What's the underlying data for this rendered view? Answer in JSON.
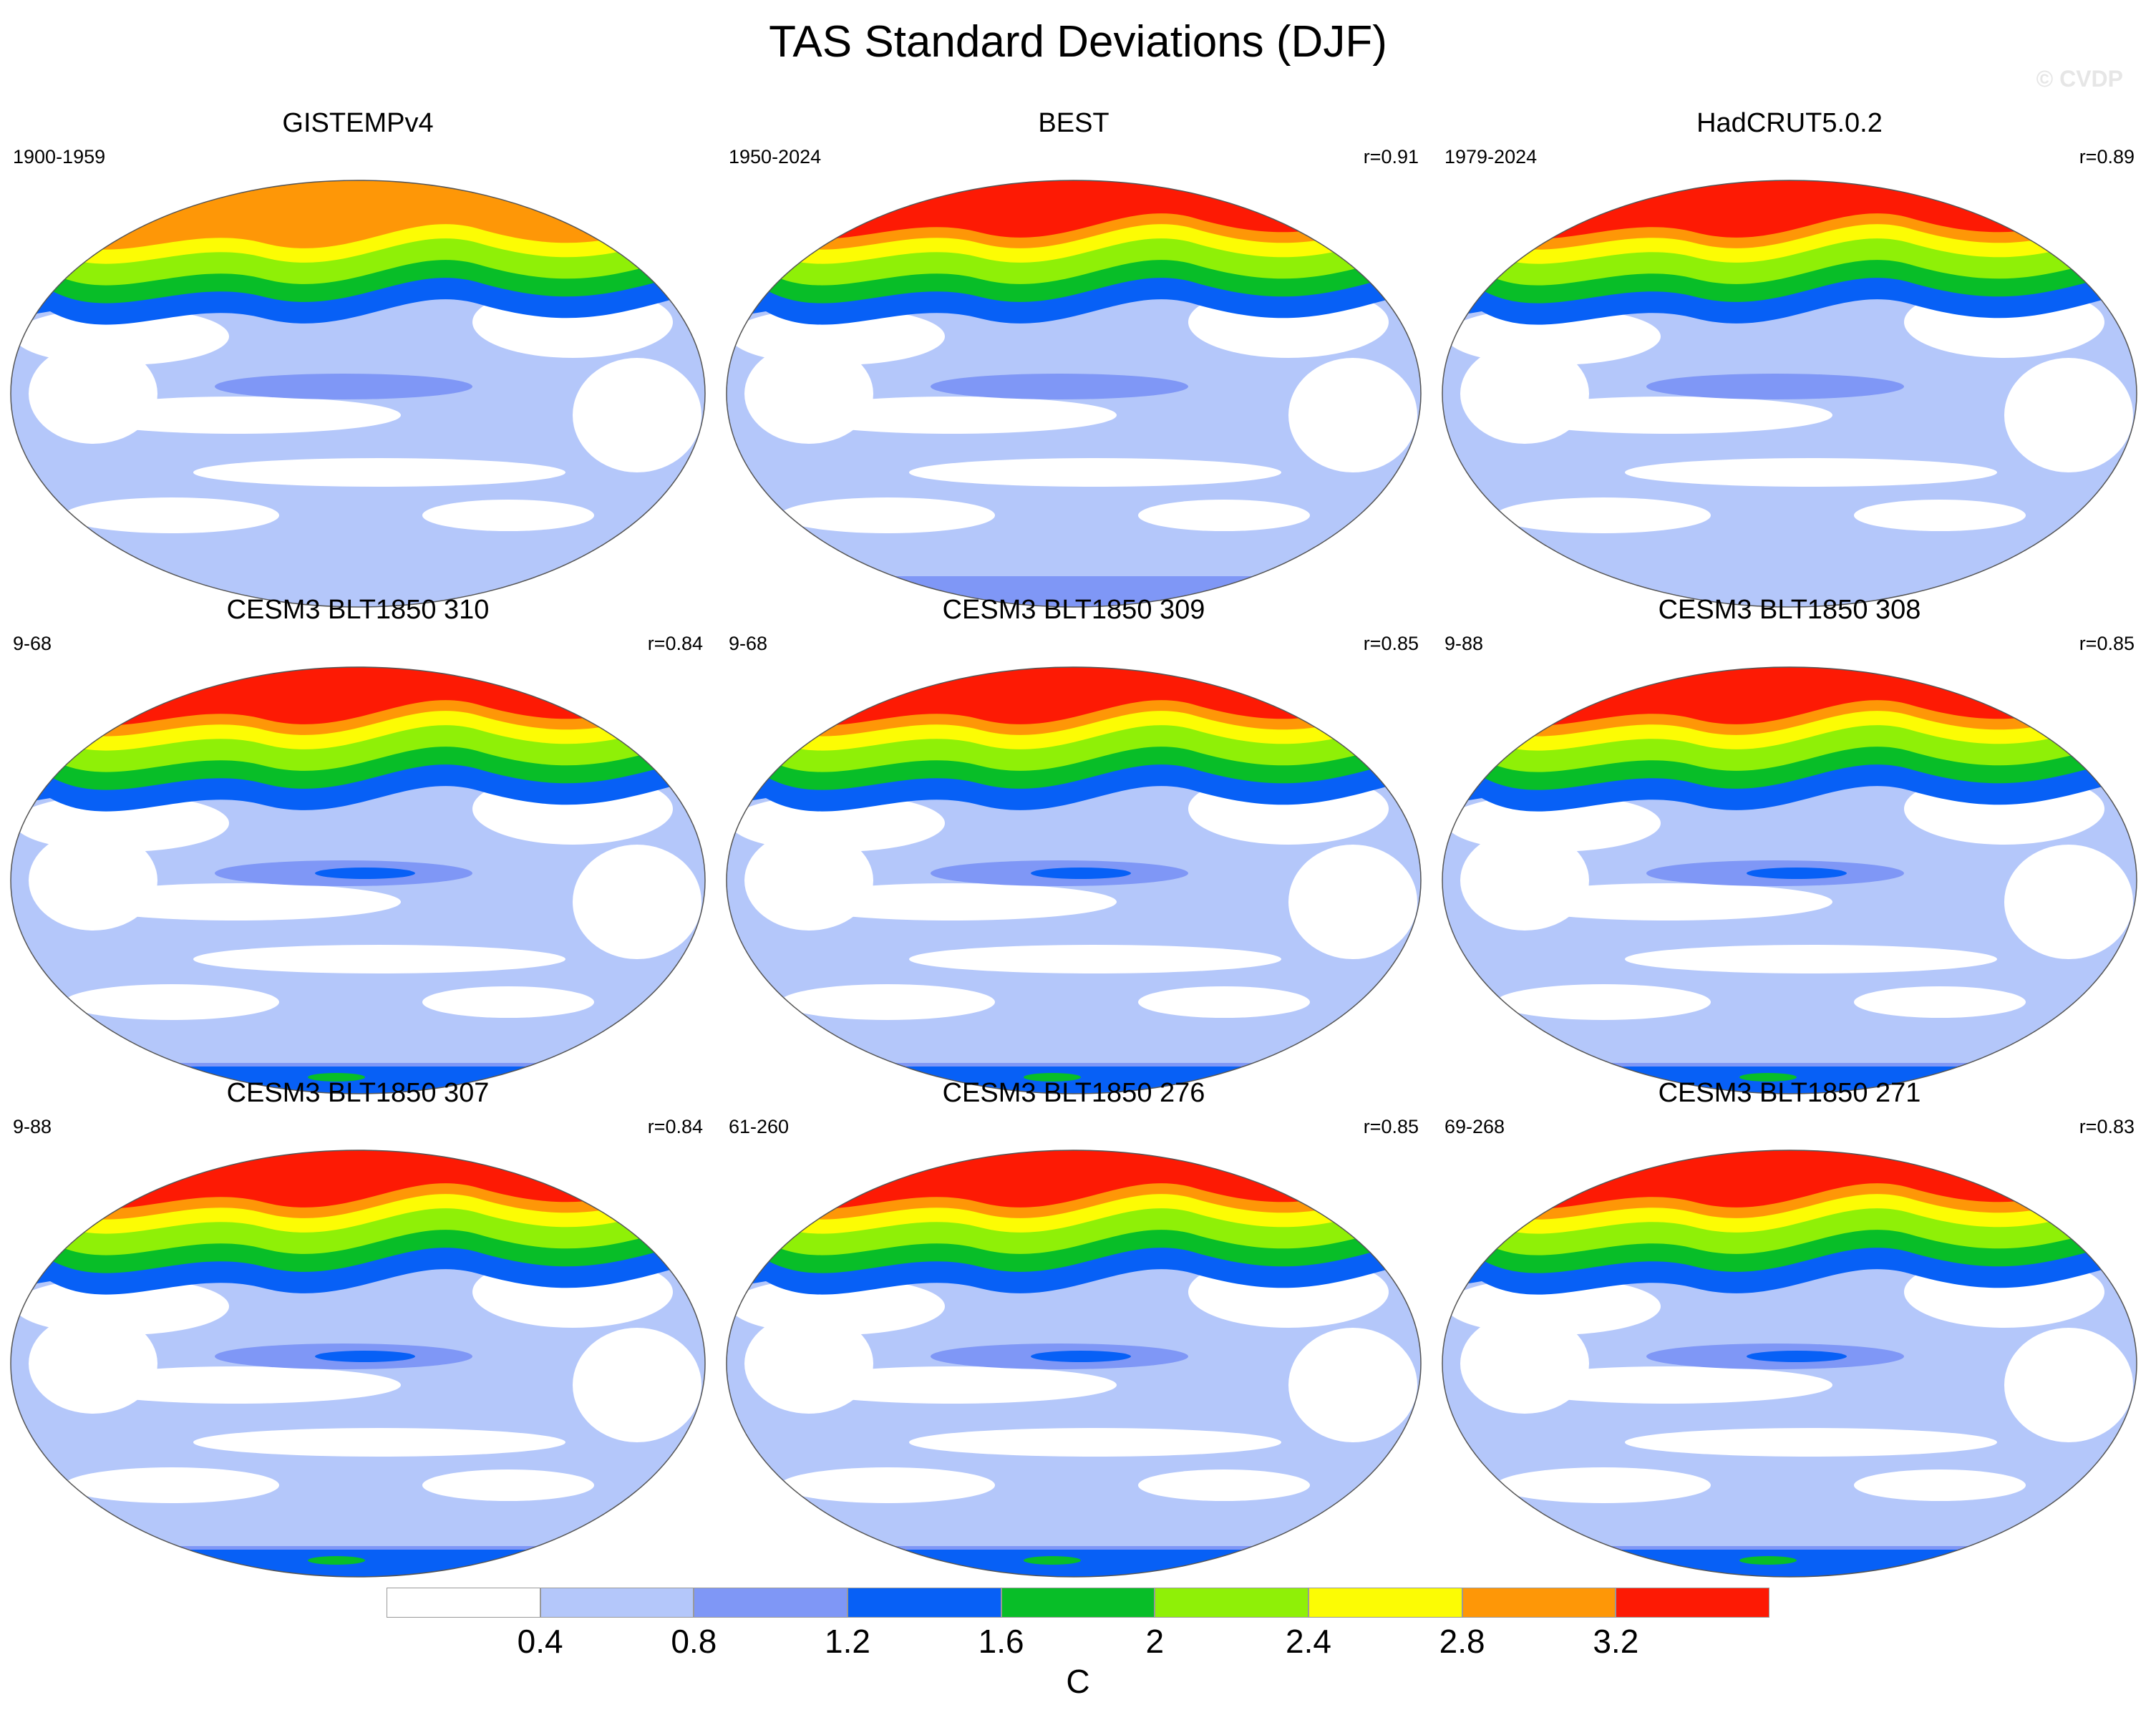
{
  "title": "TAS Standard Deviations (DJF)",
  "watermark": "© CVDP",
  "chart_data": {
    "type": "heatmap",
    "title": "TAS Standard Deviations (DJF)",
    "map_projection": "robinson-like global, centered on Pacific",
    "colorbar": {
      "unit": "C",
      "ticks": [
        "0.4",
        "0.8",
        "1.2",
        "1.6",
        "2",
        "2.4",
        "2.8",
        "3.2"
      ],
      "bins": [
        {
          "range": "<0.4",
          "color": "#ffffff"
        },
        {
          "range": "0.4-0.8",
          "color": "#b4c7fa"
        },
        {
          "range": "0.8-1.2",
          "color": "#7f97f6"
        },
        {
          "range": "1.2-1.6",
          "color": "#0760f6"
        },
        {
          "range": "1.6-2.0",
          "color": "#08be28"
        },
        {
          "range": "2.0-2.4",
          "color": "#8ff007"
        },
        {
          "range": "2.4-2.8",
          "color": "#fcfc04"
        },
        {
          "range": "2.8-3.2",
          "color": "#fe9707"
        },
        {
          "range": ">3.2",
          "color": "#fd1a04"
        }
      ]
    },
    "panels": [
      {
        "name": "GISTEMPv4",
        "period": "1900-1959",
        "r": "",
        "max_level": 7,
        "antarctic": 0
      },
      {
        "name": "BEST",
        "period": "1950-2024",
        "r": "r=0.91",
        "max_level": 8,
        "antarctic": 1
      },
      {
        "name": "HadCRUT5.0.2",
        "period": "1979-2024",
        "r": "r=0.89",
        "max_level": 8,
        "antarctic": 0
      },
      {
        "name": "CESM3 BLT1850 310",
        "period": "9-68",
        "r": "r=0.84",
        "max_level": 8,
        "antarctic": 3
      },
      {
        "name": "CESM3 BLT1850 309",
        "period": "9-68",
        "r": "r=0.85",
        "max_level": 8,
        "antarctic": 3
      },
      {
        "name": "CESM3 BLT1850 308",
        "period": "9-88",
        "r": "r=0.85",
        "max_level": 8,
        "antarctic": 3
      },
      {
        "name": "CESM3 BLT1850 307",
        "period": "9-88",
        "r": "r=0.84",
        "max_level": 8,
        "antarctic": 3
      },
      {
        "name": "CESM3 BLT1850 276",
        "period": "61-260",
        "r": "r=0.85",
        "max_level": 8,
        "antarctic": 3
      },
      {
        "name": "CESM3 BLT1850 271",
        "period": "69-268",
        "r": "r=0.83",
        "max_level": 8,
        "antarctic": 3
      }
    ]
  }
}
